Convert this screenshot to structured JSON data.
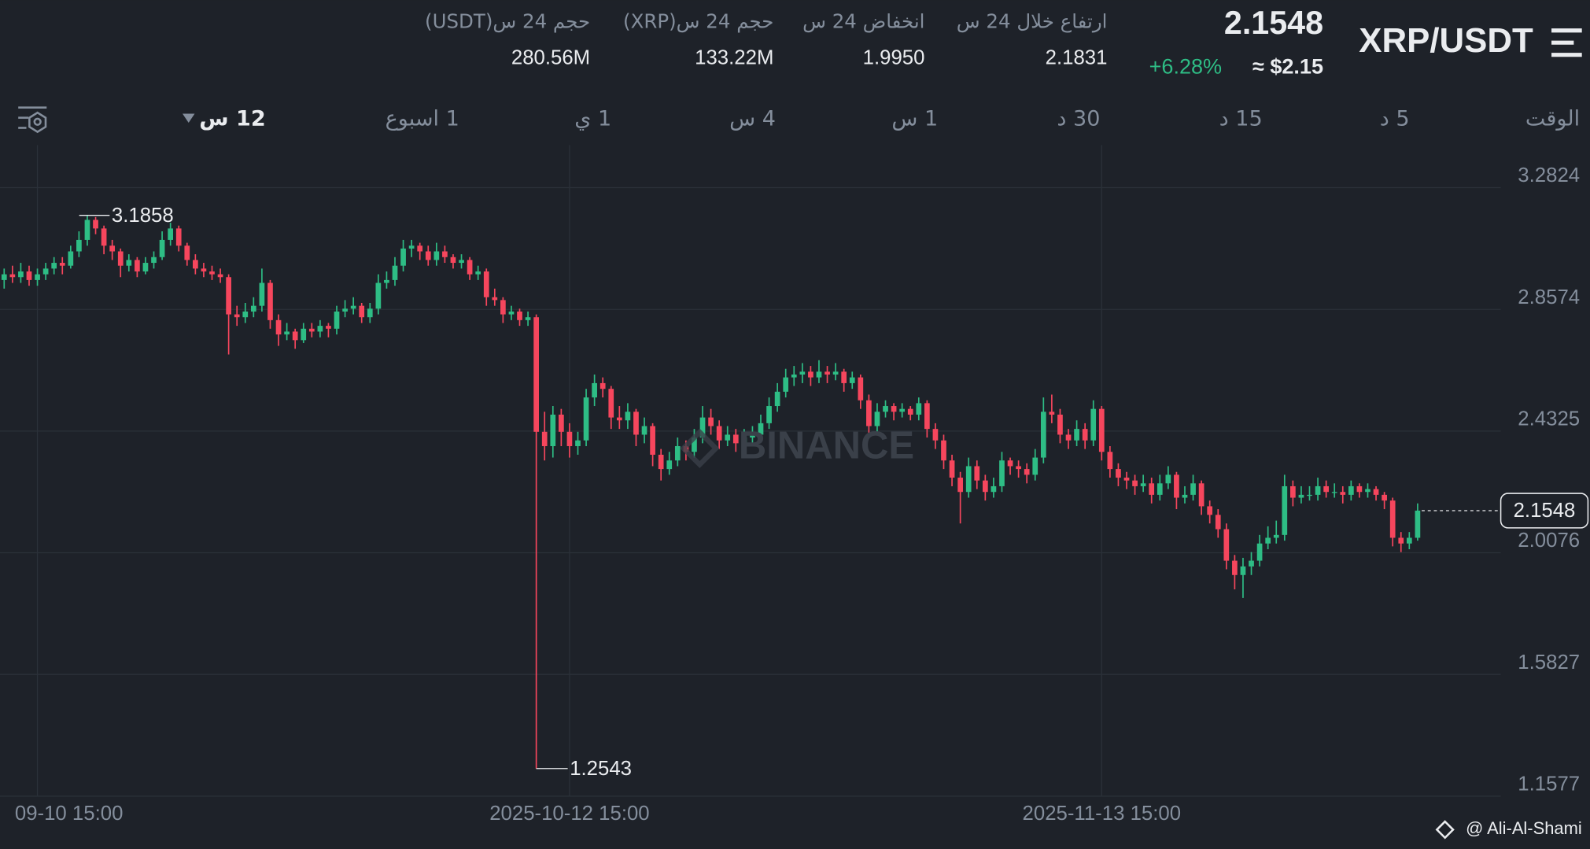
{
  "header": {
    "pair": "XRP/USDT",
    "price": "2.1548",
    "change": "+6.28%",
    "usd_price": "≈ $2.15",
    "stats": [
      {
        "label": "ارتفاع خلال 24 س",
        "value": "2.1831"
      },
      {
        "label": "انخفاض 24 س",
        "value": "1.9950"
      },
      {
        "label": "حجم 24 س(XRP)",
        "value": "133.22M"
      },
      {
        "label": "حجم 24 س(USDT)",
        "value": "280.56M"
      }
    ]
  },
  "intervals": [
    "الوقت",
    "5 د",
    "15 د",
    "30 د",
    "1 س",
    "4 س",
    "1 ي",
    "1 اسبوع",
    "12 س"
  ],
  "watermark": "BINANCE",
  "credit": "@ Ali-Al-Shami",
  "chart_data": {
    "type": "candlestick",
    "up_color": "#2ebd85",
    "down_color": "#f6465d",
    "ylim": [
      1.1577,
      3.2824
    ],
    "yticks": [
      3.2824,
      2.8574,
      2.4325,
      2.0076,
      1.5827,
      1.1577
    ],
    "xlim": [
      -0.5,
      180
    ],
    "xticks": [
      {
        "value": 4,
        "label": "09-10 15:00"
      },
      {
        "value": 68,
        "label": "2025-10-12 15:00"
      },
      {
        "value": 132,
        "label": "2025-11-13 15:00"
      }
    ],
    "grid": true,
    "high_label": 3.1858,
    "low_label": 1.2543,
    "last_price": 2.1548,
    "candles": [
      [
        2.96,
        3.0,
        2.93,
        2.98
      ],
      [
        2.98,
        3.01,
        2.95,
        2.97
      ],
      [
        2.97,
        3.02,
        2.95,
        2.99
      ],
      [
        2.99,
        3.01,
        2.94,
        2.96
      ],
      [
        2.96,
        3.0,
        2.94,
        2.98
      ],
      [
        2.98,
        3.02,
        2.96,
        3.0
      ],
      [
        3.0,
        3.04,
        2.98,
        3.02
      ],
      [
        3.02,
        3.04,
        2.98,
        3.01
      ],
      [
        3.01,
        3.08,
        3.0,
        3.06
      ],
      [
        3.06,
        3.13,
        3.04,
        3.1
      ],
      [
        3.1,
        3.1858,
        3.08,
        3.17
      ],
      [
        3.17,
        3.18,
        3.12,
        3.14
      ],
      [
        3.14,
        3.15,
        3.05,
        3.08
      ],
      [
        3.08,
        3.1,
        3.03,
        3.06
      ],
      [
        3.06,
        3.07,
        2.97,
        3.01
      ],
      [
        3.01,
        3.05,
        2.99,
        3.03
      ],
      [
        3.03,
        3.04,
        2.97,
        2.99
      ],
      [
        2.99,
        3.04,
        2.98,
        3.02
      ],
      [
        3.02,
        3.06,
        3.0,
        3.04
      ],
      [
        3.04,
        3.13,
        3.03,
        3.1
      ],
      [
        3.1,
        3.16,
        3.08,
        3.14
      ],
      [
        3.14,
        3.15,
        3.06,
        3.08
      ],
      [
        3.08,
        3.09,
        3.01,
        3.03
      ],
      [
        3.03,
        3.05,
        2.98,
        3.0
      ],
      [
        3.0,
        3.02,
        2.97,
        2.99
      ],
      [
        2.99,
        3.01,
        2.96,
        2.98
      ],
      [
        2.98,
        3.0,
        2.95,
        2.97
      ],
      [
        2.97,
        2.98,
        2.7,
        2.84
      ],
      [
        2.84,
        2.87,
        2.8,
        2.83
      ],
      [
        2.83,
        2.88,
        2.81,
        2.85
      ],
      [
        2.85,
        2.9,
        2.83,
        2.87
      ],
      [
        2.87,
        3.0,
        2.85,
        2.95
      ],
      [
        2.95,
        2.96,
        2.79,
        2.82
      ],
      [
        2.82,
        2.84,
        2.73,
        2.77
      ],
      [
        2.77,
        2.81,
        2.75,
        2.78
      ],
      [
        2.78,
        2.79,
        2.72,
        2.75
      ],
      [
        2.75,
        2.81,
        2.74,
        2.79
      ],
      [
        2.79,
        2.81,
        2.76,
        2.78
      ],
      [
        2.78,
        2.82,
        2.76,
        2.8
      ],
      [
        2.8,
        2.81,
        2.76,
        2.79
      ],
      [
        2.79,
        2.87,
        2.77,
        2.85
      ],
      [
        2.85,
        2.89,
        2.83,
        2.86
      ],
      [
        2.86,
        2.9,
        2.84,
        2.87
      ],
      [
        2.87,
        2.88,
        2.81,
        2.83
      ],
      [
        2.83,
        2.88,
        2.81,
        2.86
      ],
      [
        2.86,
        2.98,
        2.84,
        2.95
      ],
      [
        2.95,
        2.99,
        2.93,
        2.96
      ],
      [
        2.96,
        3.04,
        2.94,
        3.01
      ],
      [
        3.01,
        3.1,
        2.99,
        3.07
      ],
      [
        3.07,
        3.1,
        3.04,
        3.08
      ],
      [
        3.08,
        3.09,
        3.03,
        3.06
      ],
      [
        3.06,
        3.08,
        3.01,
        3.03
      ],
      [
        3.03,
        3.09,
        3.01,
        3.06
      ],
      [
        3.06,
        3.08,
        3.02,
        3.04
      ],
      [
        3.04,
        3.05,
        3.0,
        3.02
      ],
      [
        3.02,
        3.05,
        3.0,
        3.03
      ],
      [
        3.03,
        3.04,
        2.96,
        2.98
      ],
      [
        2.98,
        3.01,
        2.96,
        2.99
      ],
      [
        2.99,
        3.0,
        2.87,
        2.9
      ],
      [
        2.9,
        2.93,
        2.87,
        2.89
      ],
      [
        2.89,
        2.9,
        2.81,
        2.84
      ],
      [
        2.84,
        2.87,
        2.82,
        2.85
      ],
      [
        2.85,
        2.86,
        2.8,
        2.82
      ],
      [
        2.82,
        2.85,
        2.8,
        2.83
      ],
      [
        2.83,
        2.84,
        1.2543,
        2.43
      ],
      [
        2.43,
        2.5,
        2.33,
        2.38
      ],
      [
        2.38,
        2.52,
        2.34,
        2.49
      ],
      [
        2.49,
        2.51,
        2.38,
        2.43
      ],
      [
        2.43,
        2.46,
        2.34,
        2.38
      ],
      [
        2.38,
        2.43,
        2.35,
        2.4
      ],
      [
        2.4,
        2.58,
        2.38,
        2.55
      ],
      [
        2.55,
        2.63,
        2.52,
        2.6
      ],
      [
        2.6,
        2.62,
        2.55,
        2.58
      ],
      [
        2.58,
        2.59,
        2.44,
        2.48
      ],
      [
        2.48,
        2.52,
        2.44,
        2.47
      ],
      [
        2.47,
        2.53,
        2.44,
        2.5
      ],
      [
        2.5,
        2.51,
        2.38,
        2.42
      ],
      [
        2.42,
        2.48,
        2.39,
        2.45
      ],
      [
        2.45,
        2.46,
        2.31,
        2.35
      ],
      [
        2.35,
        2.37,
        2.26,
        2.3
      ],
      [
        2.3,
        2.36,
        2.28,
        2.33
      ],
      [
        2.33,
        2.41,
        2.31,
        2.38
      ],
      [
        2.38,
        2.4,
        2.33,
        2.36
      ],
      [
        2.36,
        2.44,
        2.34,
        2.41
      ],
      [
        2.41,
        2.52,
        2.39,
        2.48
      ],
      [
        2.48,
        2.51,
        2.42,
        2.45
      ],
      [
        2.45,
        2.47,
        2.37,
        2.4
      ],
      [
        2.4,
        2.45,
        2.38,
        2.42
      ],
      [
        2.42,
        2.44,
        2.36,
        2.39
      ],
      [
        2.39,
        2.44,
        2.37,
        2.41
      ],
      [
        2.41,
        2.45,
        2.39,
        2.42
      ],
      [
        2.42,
        2.49,
        2.4,
        2.46
      ],
      [
        2.46,
        2.55,
        2.44,
        2.52
      ],
      [
        2.52,
        2.6,
        2.5,
        2.57
      ],
      [
        2.57,
        2.65,
        2.55,
        2.62
      ],
      [
        2.62,
        2.66,
        2.59,
        2.63
      ],
      [
        2.63,
        2.67,
        2.6,
        2.64
      ],
      [
        2.64,
        2.66,
        2.59,
        2.62
      ],
      [
        2.62,
        2.68,
        2.6,
        2.64
      ],
      [
        2.64,
        2.66,
        2.6,
        2.63
      ],
      [
        2.63,
        2.67,
        2.61,
        2.64
      ],
      [
        2.64,
        2.65,
        2.57,
        2.6
      ],
      [
        2.6,
        2.64,
        2.58,
        2.62
      ],
      [
        2.62,
        2.63,
        2.51,
        2.54
      ],
      [
        2.54,
        2.56,
        2.42,
        2.45
      ],
      [
        2.45,
        2.53,
        2.43,
        2.5
      ],
      [
        2.5,
        2.54,
        2.48,
        2.52
      ],
      [
        2.52,
        2.53,
        2.47,
        2.5
      ],
      [
        2.5,
        2.53,
        2.48,
        2.51
      ],
      [
        2.51,
        2.52,
        2.47,
        2.49
      ],
      [
        2.49,
        2.55,
        2.47,
        2.53
      ],
      [
        2.53,
        2.54,
        2.41,
        2.44
      ],
      [
        2.44,
        2.46,
        2.37,
        2.4
      ],
      [
        2.4,
        2.42,
        2.3,
        2.33
      ],
      [
        2.33,
        2.35,
        2.24,
        2.27
      ],
      [
        2.27,
        2.29,
        2.11,
        2.22
      ],
      [
        2.22,
        2.34,
        2.2,
        2.31
      ],
      [
        2.31,
        2.33,
        2.23,
        2.26
      ],
      [
        2.26,
        2.28,
        2.19,
        2.22
      ],
      [
        2.22,
        2.27,
        2.2,
        2.24
      ],
      [
        2.24,
        2.36,
        2.22,
        2.33
      ],
      [
        2.33,
        2.34,
        2.28,
        2.31
      ],
      [
        2.31,
        2.33,
        2.27,
        2.3
      ],
      [
        2.3,
        2.32,
        2.25,
        2.28
      ],
      [
        2.28,
        2.37,
        2.26,
        2.34
      ],
      [
        2.34,
        2.55,
        2.32,
        2.5
      ],
      [
        2.5,
        2.56,
        2.46,
        2.49
      ],
      [
        2.49,
        2.51,
        2.39,
        2.42
      ],
      [
        2.42,
        2.44,
        2.37,
        2.4
      ],
      [
        2.4,
        2.47,
        2.38,
        2.44
      ],
      [
        2.44,
        2.46,
        2.37,
        2.4
      ],
      [
        2.4,
        2.54,
        2.38,
        2.51
      ],
      [
        2.51,
        2.52,
        2.33,
        2.36
      ],
      [
        2.36,
        2.38,
        2.27,
        2.3
      ],
      [
        2.3,
        2.32,
        2.24,
        2.27
      ],
      [
        2.27,
        2.29,
        2.23,
        2.26
      ],
      [
        2.26,
        2.28,
        2.21,
        2.24
      ],
      [
        2.24,
        2.28,
        2.22,
        2.25
      ],
      [
        2.25,
        2.27,
        2.18,
        2.21
      ],
      [
        2.21,
        2.28,
        2.19,
        2.25
      ],
      [
        2.25,
        2.31,
        2.23,
        2.28
      ],
      [
        2.28,
        2.29,
        2.16,
        2.2
      ],
      [
        2.2,
        2.24,
        2.18,
        2.21
      ],
      [
        2.21,
        2.28,
        2.19,
        2.25
      ],
      [
        2.25,
        2.26,
        2.14,
        2.17
      ],
      [
        2.17,
        2.19,
        2.11,
        2.14
      ],
      [
        2.14,
        2.16,
        2.06,
        2.09
      ],
      [
        2.09,
        2.11,
        1.95,
        1.98
      ],
      [
        1.98,
        2.0,
        1.88,
        1.93
      ],
      [
        1.93,
        1.99,
        1.85,
        1.96
      ],
      [
        1.96,
        2.01,
        1.93,
        1.98
      ],
      [
        1.98,
        2.07,
        1.96,
        2.04
      ],
      [
        2.04,
        2.1,
        2.02,
        2.06
      ],
      [
        2.06,
        2.12,
        2.04,
        2.07
      ],
      [
        2.07,
        2.28,
        2.05,
        2.24
      ],
      [
        2.24,
        2.26,
        2.17,
        2.2
      ],
      [
        2.2,
        2.24,
        2.18,
        2.21
      ],
      [
        2.21,
        2.24,
        2.19,
        2.21
      ],
      [
        2.21,
        2.27,
        2.19,
        2.24
      ],
      [
        2.24,
        2.26,
        2.2,
        2.22
      ],
      [
        2.22,
        2.25,
        2.2,
        2.22
      ],
      [
        2.22,
        2.24,
        2.18,
        2.21
      ],
      [
        2.21,
        2.26,
        2.19,
        2.24
      ],
      [
        2.24,
        2.25,
        2.2,
        2.22
      ],
      [
        2.22,
        2.25,
        2.2,
        2.23
      ],
      [
        2.23,
        2.24,
        2.19,
        2.21
      ],
      [
        2.21,
        2.22,
        2.16,
        2.19
      ],
      [
        2.19,
        2.2,
        2.03,
        2.06
      ],
      [
        2.06,
        2.08,
        2.01,
        2.04
      ],
      [
        2.04,
        2.08,
        2.02,
        2.06
      ],
      [
        2.06,
        2.18,
        2.05,
        2.1548
      ]
    ]
  }
}
